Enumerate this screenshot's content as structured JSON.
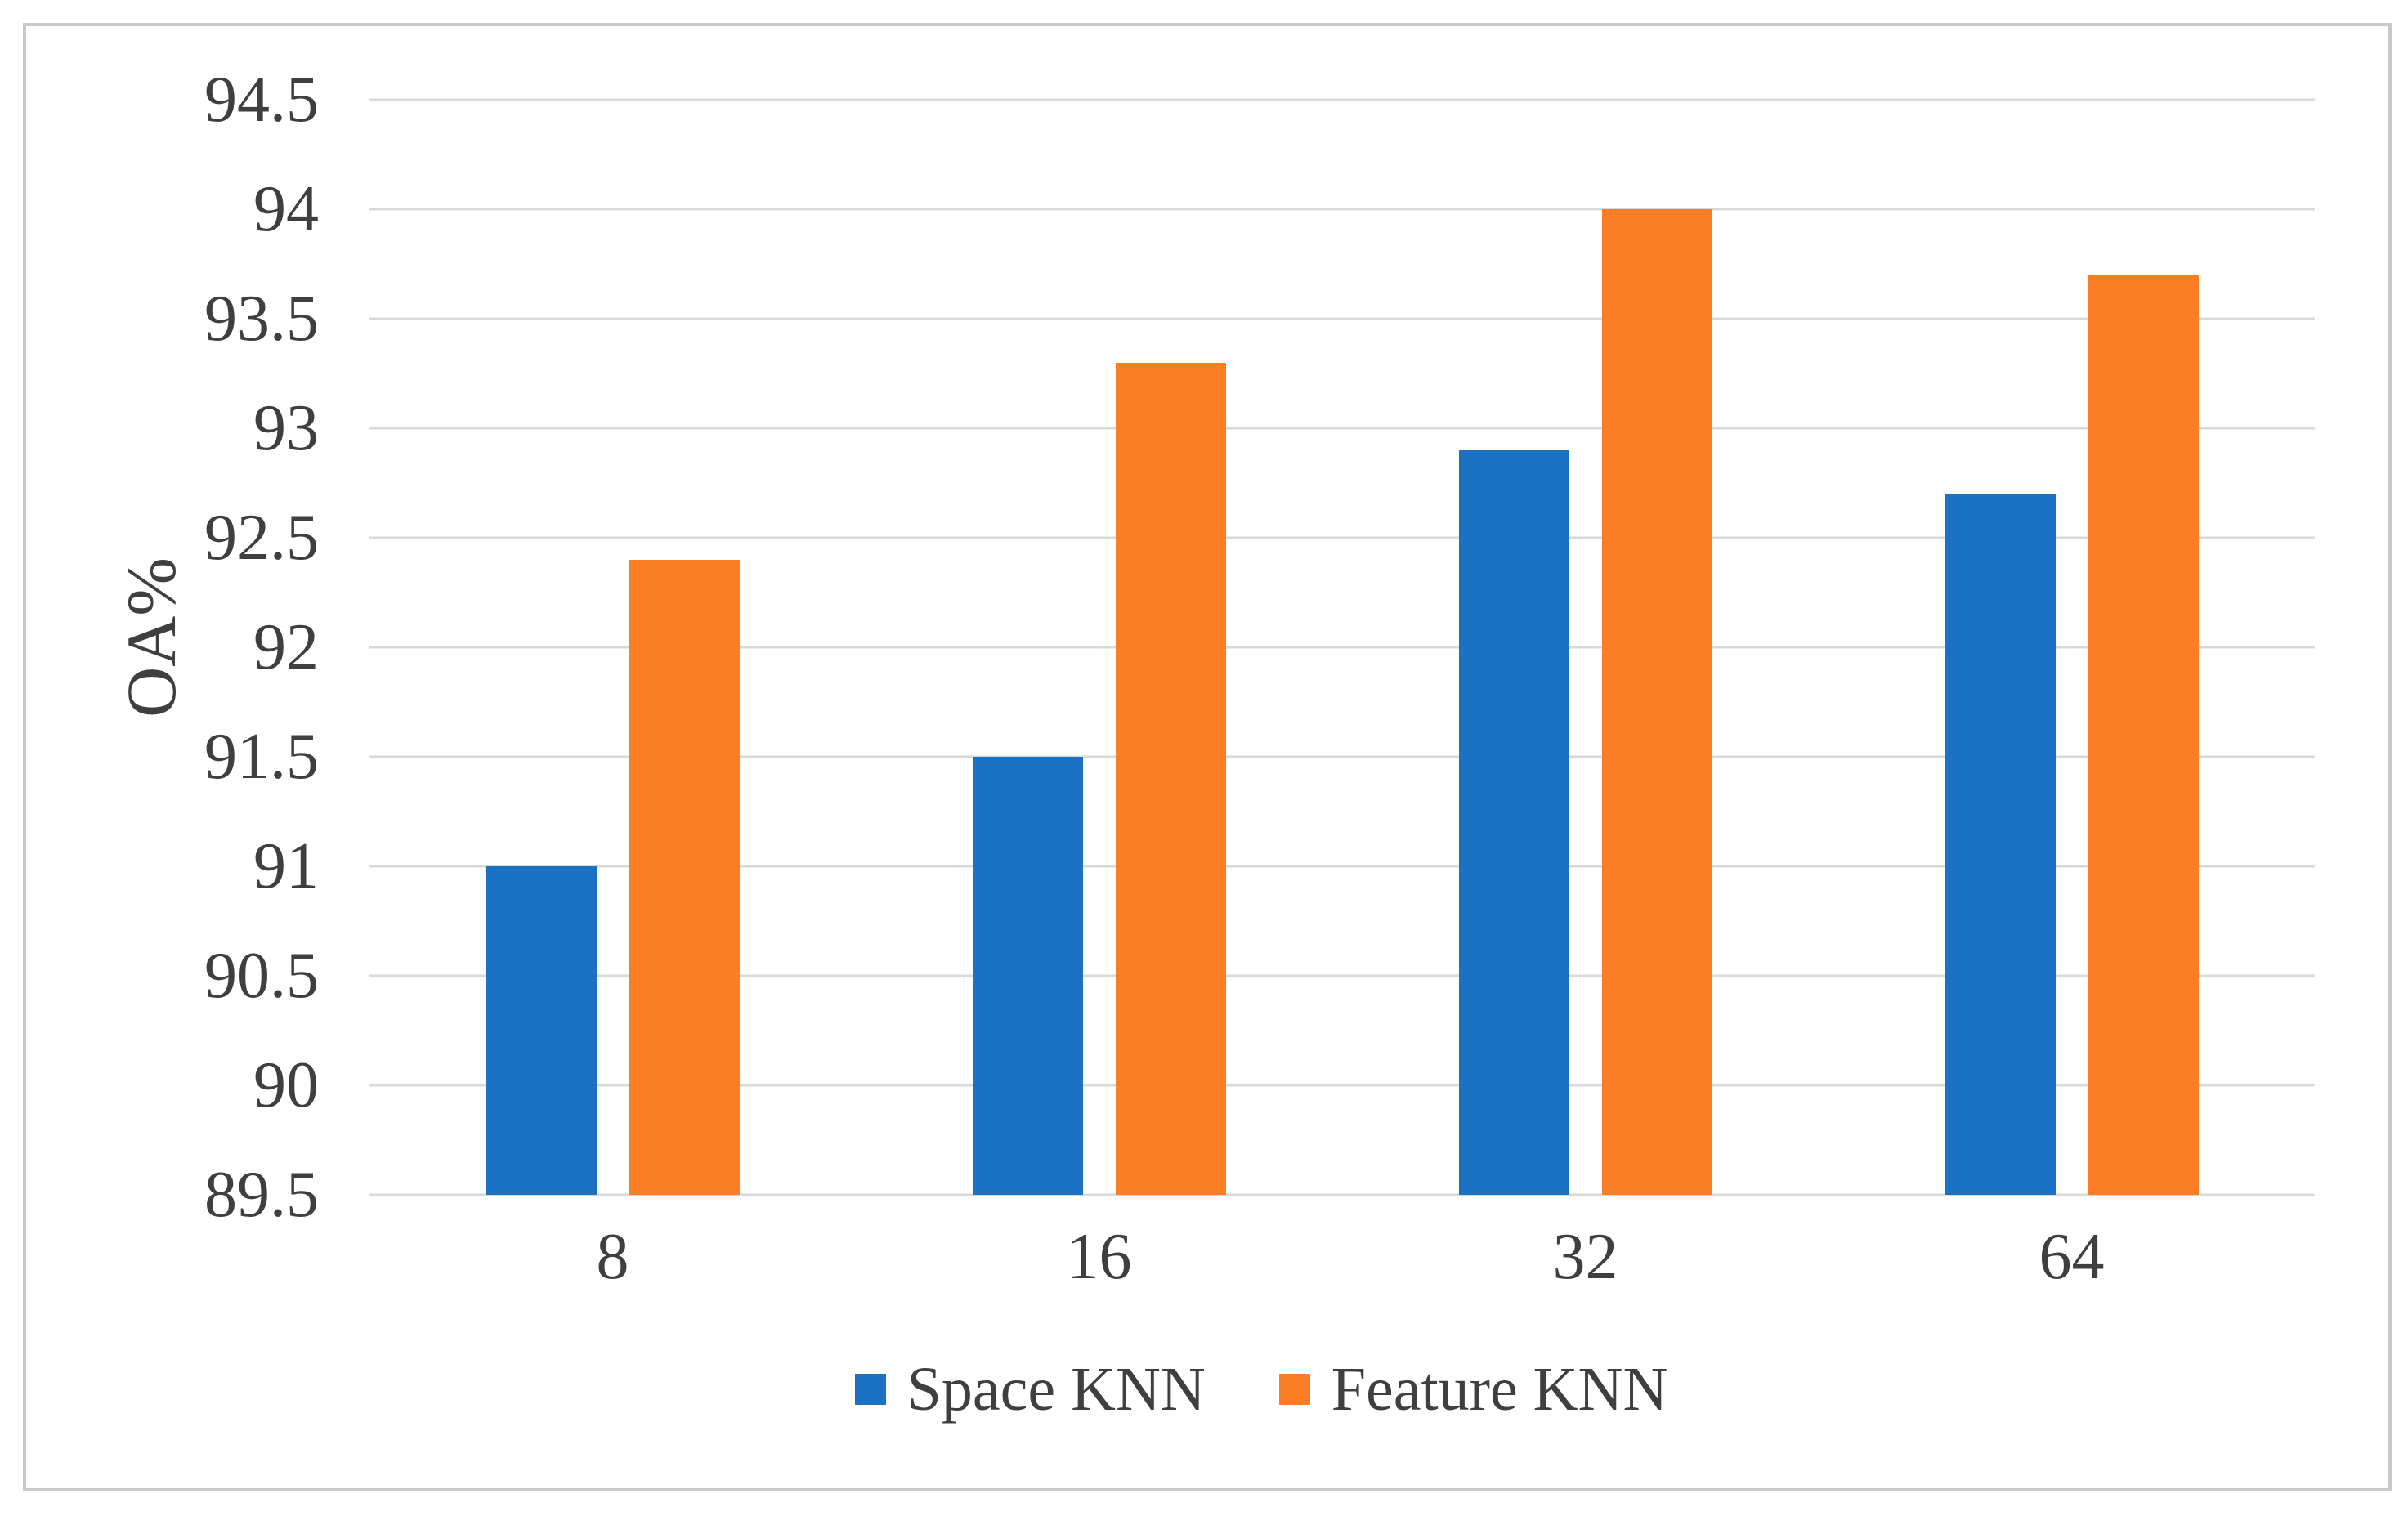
{
  "figure": {
    "background": "#ffffff",
    "frame_border_color": "#c9c9c9"
  },
  "chart_data": {
    "type": "bar",
    "title": "",
    "xlabel": "",
    "ylabel": "OA%",
    "categories": [
      "8",
      "16",
      "32",
      "64"
    ],
    "series": [
      {
        "name": "Space KNN",
        "color": "#1b72c4",
        "values": [
          91.0,
          91.5,
          92.9,
          92.7
        ]
      },
      {
        "name": "Feature KNN",
        "color": "#fb7d26",
        "values": [
          92.4,
          93.3,
          94.0,
          93.7
        ]
      }
    ],
    "ylim": [
      89.5,
      94.5
    ],
    "ytick_step": 0.5,
    "ytick_labels": [
      "89.5",
      "90",
      "90.5",
      "91",
      "91.5",
      "92",
      "92.5",
      "93",
      "93.5",
      "94",
      "94.5"
    ],
    "grid": "horizontal",
    "gridline_color": "#d9d9d9",
    "axis_text_color": "#3f3f3f",
    "legend_position": "bottom-center",
    "legend_labels": [
      "Space KNN",
      "Feature KNN"
    ]
  }
}
